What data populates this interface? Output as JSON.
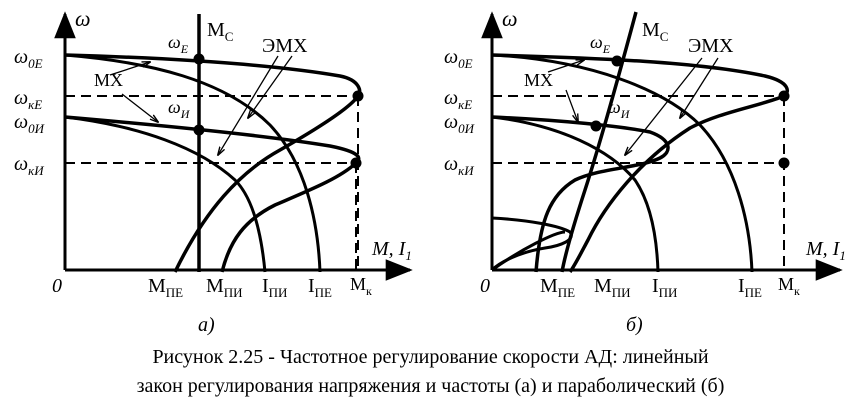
{
  "panels": [
    {
      "id": "a",
      "axis_y": "ω",
      "axis_x": "M, I",
      "axis_x_sub": "1",
      "origin": "0",
      "y_labels": [
        {
          "main": "ω",
          "sub": "0E"
        },
        {
          "main": "ω",
          "sub": "кЕ"
        },
        {
          "main": "ω",
          "sub": "0И"
        },
        {
          "main": "ω",
          "sub": "кИ"
        }
      ],
      "x_labels": [
        {
          "main": "M",
          "sub": "ПЕ"
        },
        {
          "main": "M",
          "sub": "ПИ"
        },
        {
          "main": "I",
          "sub": "ПИ"
        },
        {
          "main": "I",
          "sub": "ПЕ"
        },
        {
          "main": "M",
          "sub": "к"
        }
      ],
      "omega_e": {
        "main": "ω",
        "sub": "E"
      },
      "omega_i": {
        "main": "ω",
        "sub": "И"
      },
      "mc": {
        "main": "M",
        "sub": "C"
      },
      "mx": "МХ",
      "emx": "ЭМХ",
      "sublabel": "а)"
    },
    {
      "id": "b",
      "axis_y": "ω",
      "axis_x": "M, I",
      "axis_x_sub": "1",
      "origin": "0",
      "y_labels": [
        {
          "main": "ω",
          "sub": "0E"
        },
        {
          "main": "ω",
          "sub": "кЕ"
        },
        {
          "main": "ω",
          "sub": "0И"
        },
        {
          "main": "ω",
          "sub": "кИ"
        }
      ],
      "x_labels": [
        {
          "main": "M",
          "sub": "ПЕ"
        },
        {
          "main": "M",
          "sub": "ПИ"
        },
        {
          "main": "I",
          "sub": "ПИ"
        },
        {
          "main": "I",
          "sub": "ПЕ"
        },
        {
          "main": "M",
          "sub": "к"
        }
      ],
      "omega_e": {
        "main": "ω",
        "sub": "E"
      },
      "omega_i": {
        "main": "ω",
        "sub": "И"
      },
      "mc": {
        "main": "M",
        "sub": "C"
      },
      "mx": "МХ",
      "emx": "ЭМХ",
      "sublabel": "б)"
    }
  ],
  "caption": {
    "line1": "Рисунок 2.25 - Частотное регулирование скорости АД: линейный",
    "line2": "закон регулирования напряжения и частоты (а) и параболический (б)"
  }
}
